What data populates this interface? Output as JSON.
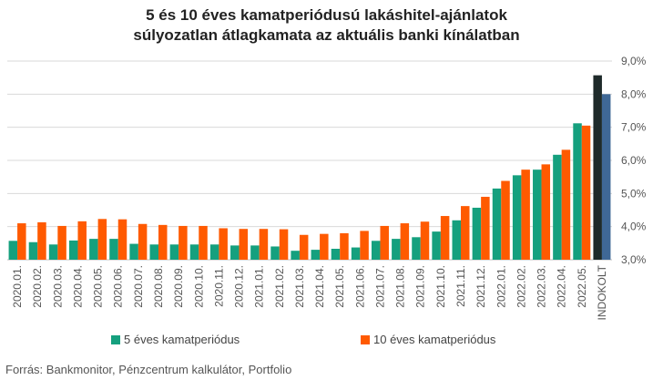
{
  "chart_data": {
    "type": "bar",
    "title_lines": [
      "5 és 10 éves kamatperiódusú lakáshitel-ajánlatok",
      "súlyozatlan átlagkamata az aktuális banki kínálatban"
    ],
    "categories": [
      "2020.01.",
      "2020.02.",
      "2020.03.",
      "2020.04.",
      "2020.05.",
      "2020.06.",
      "2020.07.",
      "2020.08.",
      "2020.09.",
      "2020.10.",
      "2020.11.",
      "2020.12.",
      "2021.01.",
      "2021.02.",
      "2021.03.",
      "2021.04.",
      "2021.05.",
      "2021.06.",
      "2021.07.",
      "2021.08.",
      "2021.09.",
      "2021.10.",
      "2021.11.",
      "2021.12.",
      "2022.01.",
      "2022.02.",
      "2022.03.",
      "2022.04.",
      "2022.05.",
      "INDOKOLT"
    ],
    "series": [
      {
        "name": "5 éves kamatperiódus",
        "color": "#15a07e",
        "values": [
          3.57,
          3.53,
          3.46,
          3.58,
          3.63,
          3.63,
          3.48,
          3.46,
          3.46,
          3.46,
          3.46,
          3.43,
          3.43,
          3.4,
          3.27,
          3.3,
          3.33,
          3.37,
          3.57,
          3.63,
          3.68,
          3.85,
          4.19,
          4.57,
          5.15,
          5.55,
          5.72,
          6.17,
          7.12,
          8.57
        ]
      },
      {
        "name": "10 éves kamatperiódus",
        "color": "#ff5a00",
        "values": [
          4.1,
          4.13,
          4.02,
          4.16,
          4.23,
          4.22,
          4.08,
          4.05,
          4.02,
          4.02,
          3.95,
          3.93,
          3.93,
          3.92,
          3.75,
          3.78,
          3.8,
          3.87,
          4.02,
          4.1,
          4.15,
          4.32,
          4.62,
          4.9,
          5.38,
          5.72,
          5.88,
          6.32,
          7.05,
          8.0
        ]
      }
    ],
    "indokolt_colors": [
      "#1e2a2a",
      "#3f6896"
    ],
    "y_ticks": [
      "3,0%",
      "4,0%",
      "5,0%",
      "6,0%",
      "7,0%",
      "8,0%",
      "9,0%"
    ],
    "ylim": [
      3.0,
      9.0
    ],
    "y_axis_side": "right",
    "grid": true,
    "legend_position": "bottom"
  },
  "footer": "Forrás: Bankmonitor, Pénzcentrum kalkulátor, Portfolio"
}
